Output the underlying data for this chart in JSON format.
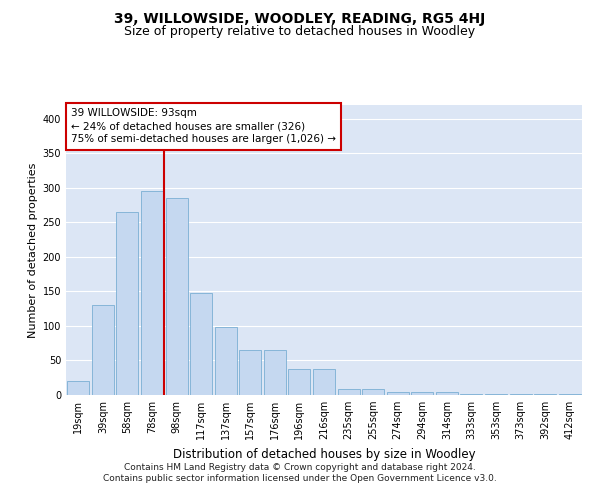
{
  "title": "39, WILLOWSIDE, WOODLEY, READING, RG5 4HJ",
  "subtitle": "Size of property relative to detached houses in Woodley",
  "xlabel": "Distribution of detached houses by size in Woodley",
  "ylabel": "Number of detached properties",
  "bar_labels": [
    "19sqm",
    "39sqm",
    "58sqm",
    "78sqm",
    "98sqm",
    "117sqm",
    "137sqm",
    "157sqm",
    "176sqm",
    "196sqm",
    "216sqm",
    "235sqm",
    "255sqm",
    "274sqm",
    "294sqm",
    "314sqm",
    "333sqm",
    "353sqm",
    "373sqm",
    "392sqm",
    "412sqm"
  ],
  "bar_heights": [
    20,
    130,
    265,
    295,
    285,
    148,
    98,
    65,
    65,
    37,
    37,
    8,
    8,
    5,
    5,
    5,
    2,
    2,
    2,
    1,
    1
  ],
  "bar_color": "#c5d8f0",
  "bar_edge_color": "#7aafd4",
  "vline_color": "#cc0000",
  "annotation_text": "39 WILLOWSIDE: 93sqm\n← 24% of detached houses are smaller (326)\n75% of semi-detached houses are larger (1,026) →",
  "annotation_box_color": "#ffffff",
  "annotation_box_edge_color": "#cc0000",
  "ylim": [
    0,
    420
  ],
  "yticks": [
    0,
    50,
    100,
    150,
    200,
    250,
    300,
    350,
    400
  ],
  "plot_bg_color": "#dce6f5",
  "grid_color": "#ffffff",
  "fig_bg_color": "#ffffff",
  "footer_line1": "Contains HM Land Registry data © Crown copyright and database right 2024.",
  "footer_line2": "Contains public sector information licensed under the Open Government Licence v3.0.",
  "title_fontsize": 10,
  "subtitle_fontsize": 9,
  "xlabel_fontsize": 8.5,
  "ylabel_fontsize": 8,
  "tick_fontsize": 7,
  "footer_fontsize": 6.5,
  "annotation_fontsize": 7.5
}
